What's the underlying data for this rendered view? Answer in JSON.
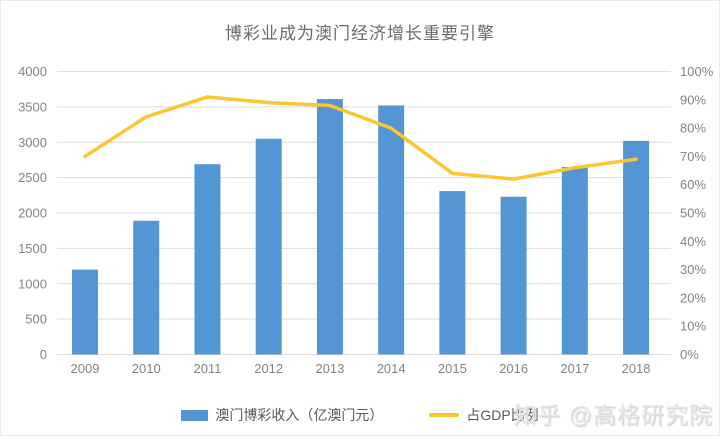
{
  "page": {
    "watermark": "知乎 @高格研究院"
  },
  "legend": {
    "bar_label": "澳门博彩收入（亿澳门元）",
    "line_label": "占GDP比例"
  },
  "colors": {
    "bar": "#5495D5",
    "line": "#FBC62F",
    "grid": "#DCDCDC",
    "axis_text": "#848484",
    "title_text": "#6B6B6B",
    "legend_text": "#595959",
    "watermark_text": "#E7E7E7",
    "border": "#EAEAEA",
    "background": "#FFFFFF"
  },
  "chart_data": {
    "type": "combo-bar-line",
    "title": "博彩业成为澳门经济增长重要引擎",
    "categories": [
      "2009",
      "2010",
      "2011",
      "2012",
      "2013",
      "2014",
      "2015",
      "2016",
      "2017",
      "2018"
    ],
    "series": [
      {
        "name": "澳门博彩收入（亿澳门元）",
        "type": "bar",
        "axis": "left",
        "values": [
          1200,
          1890,
          2690,
          3050,
          3610,
          3520,
          2310,
          2230,
          2650,
          3020
        ]
      },
      {
        "name": "占GDP比例",
        "type": "line",
        "axis": "right",
        "values": [
          70,
          84,
          91,
          89,
          88,
          80,
          64,
          62,
          66,
          69
        ]
      }
    ],
    "left_axis": {
      "min": 0,
      "max": 4000,
      "step": 500,
      "tick_labels": [
        "0",
        "500",
        "1000",
        "1500",
        "2000",
        "2500",
        "3000",
        "3500",
        "4000"
      ]
    },
    "right_axis": {
      "min": 0,
      "max": 100,
      "step": 10,
      "tick_labels": [
        "0%",
        "10%",
        "20%",
        "30%",
        "40%",
        "50%",
        "60%",
        "70%",
        "80%",
        "90%",
        "100%"
      ]
    },
    "grid": true,
    "legend_position": "bottom"
  }
}
